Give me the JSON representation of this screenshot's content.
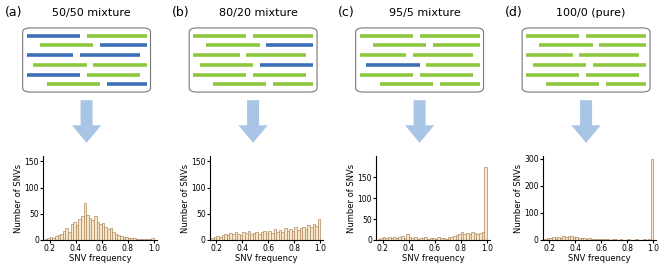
{
  "chart_data": [
    {
      "type": "histogram",
      "title": "50/50 mixture",
      "annotations": [
        "(a)"
      ],
      "x_label": "SNV frequency",
      "y_label": "Number of SNVs",
      "bins": [
        0.16,
        0.18,
        0.2,
        0.22,
        0.24,
        0.26,
        0.28,
        0.3,
        0.32,
        0.34,
        0.36,
        0.38,
        0.4,
        0.42,
        0.44,
        0.46,
        0.48,
        0.5,
        0.52,
        0.54,
        0.56,
        0.58,
        0.6,
        0.62,
        0.64,
        0.66,
        0.68,
        0.7,
        0.72,
        0.74,
        0.76,
        0.78,
        0.8,
        0.82,
        0.84,
        0.86,
        0.88,
        0.9,
        0.92,
        0.94,
        0.96,
        0.98,
        1.0
      ],
      "counts": [
        2,
        3,
        5,
        4,
        8,
        10,
        12,
        18,
        22,
        15,
        30,
        35,
        28,
        40,
        45,
        70,
        48,
        42,
        38,
        45,
        35,
        30,
        32,
        25,
        20,
        22,
        15,
        12,
        10,
        8,
        6,
        5,
        4,
        3,
        3,
        2,
        2,
        1,
        1,
        1,
        2,
        3
      ],
      "color": "#f7e8cc",
      "xlim": [
        0.15,
        1.02
      ],
      "xticks": [
        0.2,
        0.4,
        0.6,
        0.8,
        1.0
      ],
      "ylim": [
        0,
        160
      ],
      "yticks": [
        0,
        50,
        100,
        150
      ]
    },
    {
      "type": "histogram",
      "title": "80/20 mixture",
      "annotations": [
        "(b)"
      ],
      "x_label": "SNV frequency",
      "y_label": "Number of SNVs",
      "bins": [
        0.16,
        0.18,
        0.2,
        0.22,
        0.24,
        0.26,
        0.28,
        0.3,
        0.32,
        0.34,
        0.36,
        0.38,
        0.4,
        0.42,
        0.44,
        0.46,
        0.48,
        0.5,
        0.52,
        0.54,
        0.56,
        0.58,
        0.6,
        0.62,
        0.64,
        0.66,
        0.68,
        0.7,
        0.72,
        0.74,
        0.76,
        0.78,
        0.8,
        0.82,
        0.84,
        0.86,
        0.88,
        0.9,
        0.92,
        0.94,
        0.96,
        0.98,
        1.0
      ],
      "counts": [
        3,
        5,
        8,
        6,
        10,
        12,
        9,
        14,
        11,
        16,
        12,
        10,
        15,
        13,
        18,
        11,
        14,
        16,
        12,
        15,
        17,
        13,
        18,
        14,
        20,
        16,
        19,
        15,
        22,
        18,
        20,
        17,
        24,
        19,
        22,
        25,
        20,
        28,
        24,
        30,
        26,
        40
      ],
      "color": "#f7e8cc",
      "xlim": [
        0.15,
        1.02
      ],
      "xticks": [
        0.2,
        0.4,
        0.6,
        0.8,
        1.0
      ],
      "ylim": [
        0,
        160
      ],
      "yticks": [
        0,
        50,
        100,
        150
      ]
    },
    {
      "type": "histogram",
      "title": "95/5 mixture",
      "annotations": [
        "(c)"
      ],
      "x_label": "SNV frequency",
      "y_label": "Number of SNVs",
      "bins": [
        0.16,
        0.18,
        0.2,
        0.22,
        0.24,
        0.26,
        0.28,
        0.3,
        0.32,
        0.34,
        0.36,
        0.38,
        0.4,
        0.42,
        0.44,
        0.46,
        0.48,
        0.5,
        0.52,
        0.54,
        0.56,
        0.58,
        0.6,
        0.62,
        0.64,
        0.66,
        0.68,
        0.7,
        0.72,
        0.74,
        0.76,
        0.78,
        0.8,
        0.82,
        0.84,
        0.86,
        0.88,
        0.9,
        0.92,
        0.94,
        0.96,
        0.98,
        1.0
      ],
      "counts": [
        3,
        5,
        6,
        4,
        8,
        5,
        7,
        4,
        6,
        9,
        5,
        14,
        6,
        4,
        8,
        3,
        5,
        4,
        6,
        3,
        4,
        5,
        3,
        6,
        4,
        5,
        3,
        8,
        6,
        10,
        12,
        15,
        18,
        14,
        16,
        15,
        18,
        16,
        14,
        17,
        20,
        175
      ],
      "color": "#f7e8cc",
      "xlim": [
        0.15,
        1.02
      ],
      "xticks": [
        0.2,
        0.4,
        0.6,
        0.8,
        1.0
      ],
      "ylim": [
        0,
        200
      ],
      "yticks": [
        0,
        50,
        100,
        150
      ]
    },
    {
      "type": "histogram",
      "title": "100/0 (pure)",
      "annotations": [
        "(d)"
      ],
      "x_label": "SNV frequency",
      "y_label": "Number of SNVs",
      "bins": [
        0.16,
        0.18,
        0.2,
        0.22,
        0.24,
        0.26,
        0.28,
        0.3,
        0.32,
        0.34,
        0.36,
        0.38,
        0.4,
        0.42,
        0.44,
        0.46,
        0.48,
        0.5,
        0.52,
        0.54,
        0.56,
        0.58,
        0.6,
        0.62,
        0.64,
        0.66,
        0.68,
        0.7,
        0.72,
        0.74,
        0.76,
        0.78,
        0.8,
        0.82,
        0.84,
        0.86,
        0.88,
        0.9,
        0.92,
        0.94,
        0.96,
        0.98,
        1.0
      ],
      "counts": [
        4,
        6,
        8,
        10,
        7,
        12,
        9,
        14,
        11,
        13,
        15,
        10,
        12,
        8,
        9,
        6,
        5,
        7,
        4,
        3,
        5,
        2,
        3,
        2,
        3,
        1,
        2,
        2,
        1,
        2,
        1,
        1,
        2,
        1,
        1,
        2,
        1,
        1,
        2,
        1,
        3,
        300
      ],
      "color": "#f7e8cc",
      "xlim": [
        0.15,
        1.02
      ],
      "xticks": [
        0.2,
        0.4,
        0.6,
        0.8,
        1.0
      ],
      "ylim": [
        0,
        310
      ],
      "yticks": [
        0,
        100,
        200,
        300
      ]
    }
  ]
}
